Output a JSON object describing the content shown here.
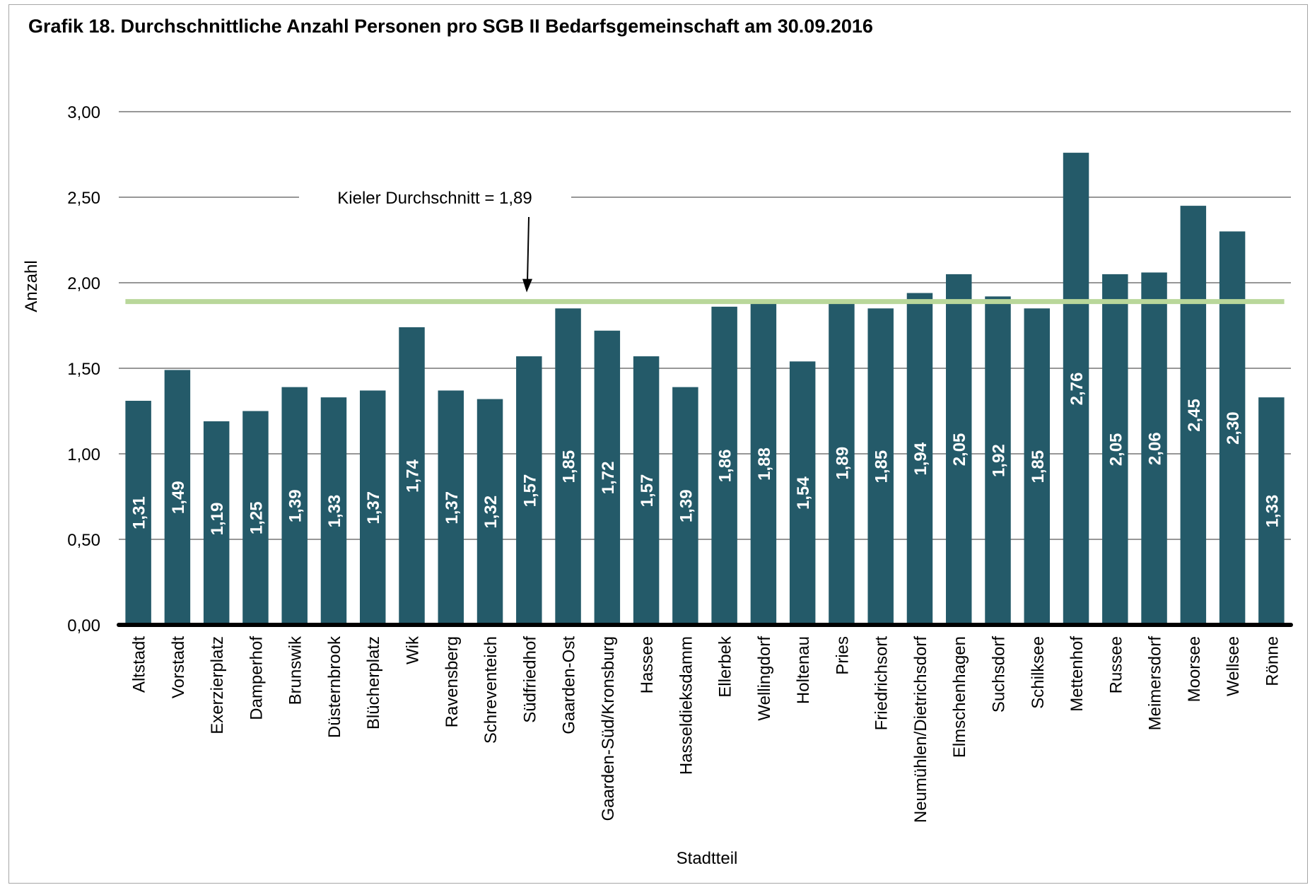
{
  "chart_data": {
    "type": "bar",
    "title": "Grafik 18.  Durchschnittliche Anzahl Personen pro SGB II Bedarfsgemeinschaft am 30.09.2016",
    "xlabel": "Stadtteil",
    "ylabel": "Anzahl",
    "ylim": [
      0,
      3
    ],
    "yticks": [
      "0,00",
      "0,50",
      "1,00",
      "1,50",
      "2,00",
      "2,50",
      "3,00"
    ],
    "grid": true,
    "bar_color": "#245a69",
    "reference_line": {
      "value": 1.89,
      "label": "Kieler Durchschnitt = 1,89",
      "color": "#b9d79a"
    },
    "categories": [
      "Altstadt",
      "Vorstadt",
      "Exerzierplatz",
      "Damperhof",
      "Brunswik",
      "Düsternbrook",
      "Blücherplatz",
      "Wik",
      "Ravensberg",
      "Schreventeich",
      "Südfriedhof",
      "Gaarden-Ost",
      "Gaarden-Süd/Kronsburg",
      "Hassee",
      "Hasseldieksdamm",
      "Ellerbek",
      "Wellingdorf",
      "Holtenau",
      "Pries",
      "Friedrichsort",
      "Neumühlen/Dietrichsdorf",
      "Elmschenhagen",
      "Suchsdorf",
      "Schilksee",
      "Mettenhof",
      "Russee",
      "Meimersdorf",
      "Moorsee",
      "Wellsee",
      "Rönne"
    ],
    "values": [
      1.31,
      1.49,
      1.19,
      1.25,
      1.39,
      1.33,
      1.37,
      1.74,
      1.37,
      1.32,
      1.57,
      1.85,
      1.72,
      1.57,
      1.39,
      1.86,
      1.88,
      1.54,
      1.89,
      1.85,
      1.94,
      2.05,
      1.92,
      1.85,
      2.76,
      2.05,
      2.06,
      2.45,
      2.3,
      1.33
    ],
    "value_labels": [
      "1,31",
      "1,49",
      "1,19",
      "1,25",
      "1,39",
      "1,33",
      "1,37",
      "1,74",
      "1,37",
      "1,32",
      "1,57",
      "1,85",
      "1,72",
      "1,57",
      "1,39",
      "1,86",
      "1,88",
      "1,54",
      "1,89",
      "1,85",
      "1,94",
      "2,05",
      "1,92",
      "1,85",
      "2,76",
      "2,05",
      "2,06",
      "2,45",
      "2,30",
      "1,33"
    ]
  }
}
